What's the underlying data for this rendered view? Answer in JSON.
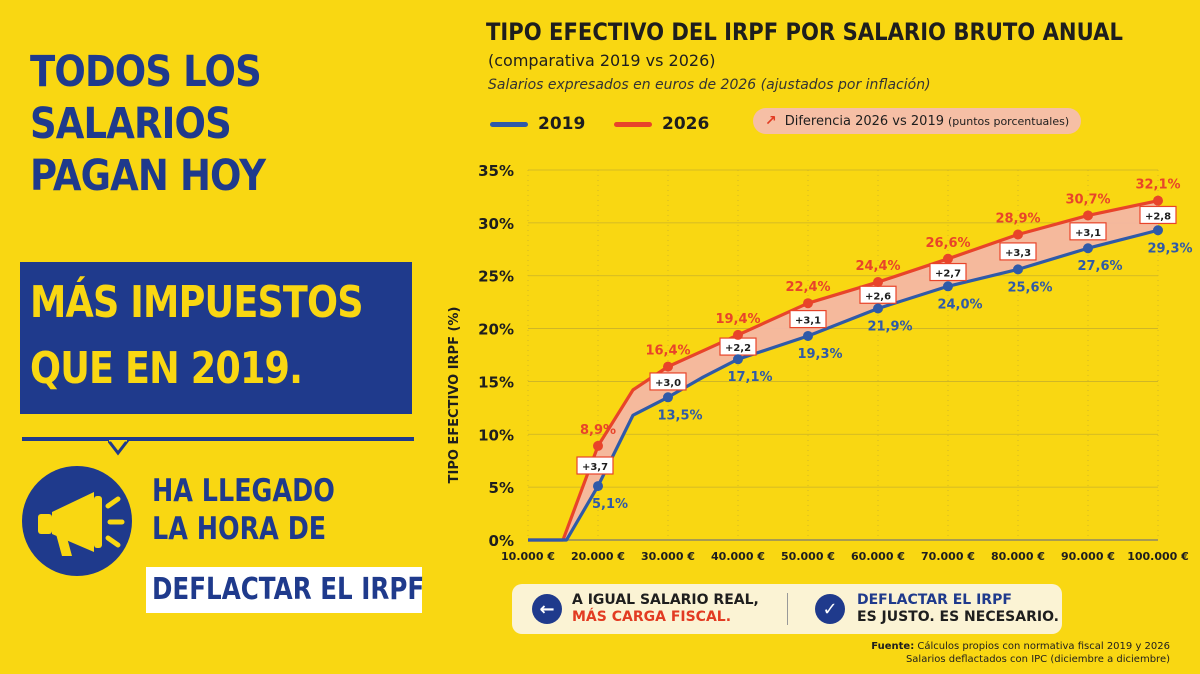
{
  "left_panel": {
    "headline": [
      "TODOS LOS",
      "SALARIOS",
      "PAGAN HOY"
    ],
    "highlight": [
      "MÁS IMPUESTOS",
      "QUE EN 2019."
    ],
    "sub": [
      "HA LLEGADO",
      "LA HORA DE"
    ],
    "deflactar": "DEFLACTAR EL IRPF"
  },
  "header": {
    "title": "TIPO EFECTIVO DEL IRPF POR SALARIO BRUTO ANUAL",
    "subtitle": "(comparativa 2019 vs 2026)",
    "note": "Salarios expresados en euros de 2026 (ajustados por inflación)"
  },
  "legend": {
    "s2019": "2019",
    "s2026": "2026",
    "diff_label": "Diferencia 2026 vs 2019",
    "diff_unit": "(puntos porcentuales)"
  },
  "info_box": {
    "left_line1": "A IGUAL SALARIO REAL,",
    "left_line2": "MÁS CARGA FISCAL.",
    "right_line1": "DEFLACTAR EL IRPF",
    "right_line2": "ES JUSTO. ES NECESARIO."
  },
  "source": {
    "label": "Fuente:",
    "line1": "Cálculos propios con normativa fiscal 2019 y 2026",
    "line2": "Salarios deflactados con IPC (diciembre a diciembre)"
  },
  "colors": {
    "blue": "#2F5AA8",
    "red": "#E8442A",
    "fill": "#F4B7A4",
    "navy": "#1F3A8C",
    "yellow": "#F9D712"
  },
  "chart_data": {
    "type": "line",
    "title": "TIPO EFECTIVO DEL IRPF POR SALARIO BRUTO ANUAL",
    "subtitle": "(comparativa 2019 vs 2026)",
    "ylabel": "TIPO EFECTIVO IRPF (%)",
    "xlabel": "",
    "xlim": [
      10000,
      100000
    ],
    "ylim": [
      0,
      35
    ],
    "grid": true,
    "legend": "top-left",
    "x_ticks": [
      "10.000 €",
      "20.000 €",
      "30.000 €",
      "40.000 €",
      "50.000 €",
      "60.000 €",
      "70.000 €",
      "80.000 €",
      "90.000 €",
      "100.000 €"
    ],
    "y_ticks": [
      "0%",
      "5%",
      "10%",
      "15%",
      "20%",
      "25%",
      "30%",
      "35%"
    ],
    "series": [
      {
        "name": "2019",
        "line": [
          [
            10000,
            0
          ],
          [
            15500,
            0
          ],
          [
            20000,
            5.1
          ],
          [
            25000,
            11.8
          ],
          [
            30000,
            13.5
          ],
          [
            35000,
            15.4
          ],
          [
            40000,
            17.1
          ],
          [
            50000,
            19.3
          ],
          [
            60000,
            21.9
          ],
          [
            70000,
            24.0
          ],
          [
            80000,
            25.6
          ],
          [
            90000,
            27.6
          ],
          [
            100000,
            29.3
          ]
        ],
        "markers": [
          20000,
          30000,
          40000,
          50000,
          60000,
          70000,
          80000,
          90000,
          100000
        ],
        "labels": [
          "5,1%",
          "13,5%",
          "17,1%",
          "19,3%",
          "21,9%",
          "24,0%",
          "25,6%",
          "27,6%",
          "29,3%"
        ]
      },
      {
        "name": "2026",
        "line": [
          [
            10000,
            0
          ],
          [
            15000,
            0
          ],
          [
            20000,
            8.9
          ],
          [
            25000,
            14.2
          ],
          [
            30000,
            16.4
          ],
          [
            35000,
            17.9
          ],
          [
            40000,
            19.4
          ],
          [
            50000,
            22.4
          ],
          [
            60000,
            24.4
          ],
          [
            70000,
            26.6
          ],
          [
            80000,
            28.9
          ],
          [
            90000,
            30.7
          ],
          [
            100000,
            32.1
          ]
        ],
        "markers": [
          20000,
          30000,
          40000,
          50000,
          60000,
          70000,
          80000,
          90000,
          100000
        ],
        "labels": [
          "8,9%",
          "16,4%",
          "19,4%",
          "22,4%",
          "24,4%",
          "26,6%",
          "28,9%",
          "30,7%",
          "32,1%"
        ]
      }
    ],
    "differences": [
      {
        "x": 20000,
        "label": "+3,7"
      },
      {
        "x": 30000,
        "label": "+3,0"
      },
      {
        "x": 40000,
        "label": "+2,2"
      },
      {
        "x": 50000,
        "label": "+3,1"
      },
      {
        "x": 60000,
        "label": "+2,6"
      },
      {
        "x": 70000,
        "label": "+2,7"
      },
      {
        "x": 80000,
        "label": "+3,3"
      },
      {
        "x": 90000,
        "label": "+3,1"
      },
      {
        "x": 100000,
        "label": "+2,8"
      }
    ]
  }
}
